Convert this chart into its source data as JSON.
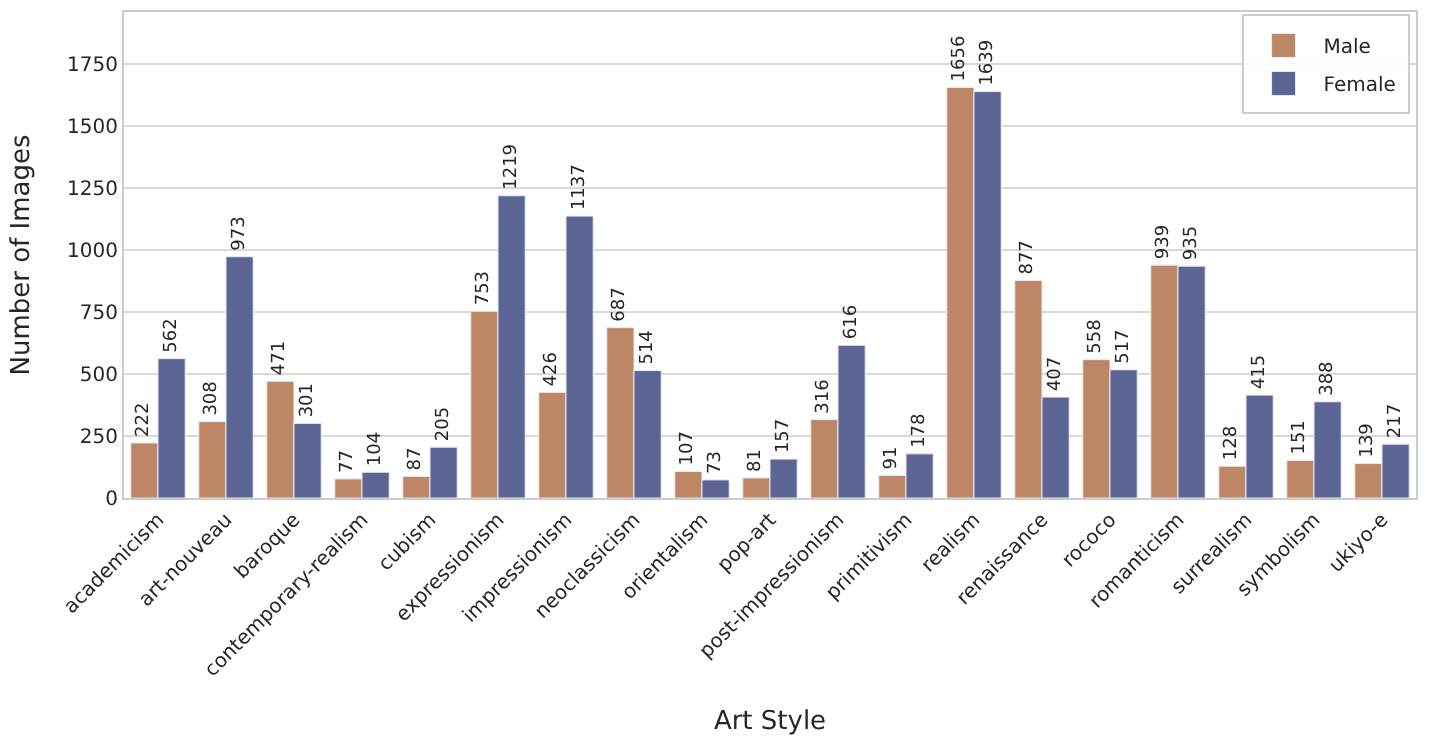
{
  "chart_data": {
    "type": "bar",
    "xlabel": "Art Style",
    "ylabel": "Number of Images",
    "categories": [
      "academicism",
      "art-nouveau",
      "baroque",
      "contemporary-realism",
      "cubism",
      "expressionism",
      "impressionism",
      "neoclassicism",
      "orientalism",
      "pop-art",
      "post-impressionism",
      "primitivism",
      "realism",
      "renaissance",
      "rococo",
      "romanticism",
      "surrealism",
      "symbolism",
      "ukiyo-e"
    ],
    "series": [
      {
        "name": "Male",
        "color": "#bd8766",
        "values": [
          222,
          308,
          471,
          77,
          87,
          753,
          426,
          687,
          107,
          81,
          316,
          91,
          1656,
          877,
          558,
          939,
          128,
          151,
          139
        ]
      },
      {
        "name": "Female",
        "color": "#5b6493",
        "values": [
          562,
          973,
          301,
          104,
          205,
          1219,
          1137,
          514,
          73,
          157,
          616,
          178,
          1639,
          407,
          517,
          935,
          415,
          388,
          217
        ]
      }
    ],
    "ylim": [
      0,
      1960
    ],
    "yticks": [
      0,
      250,
      500,
      750,
      1000,
      1250,
      1500,
      1750
    ],
    "grid": "y",
    "legend": "top right",
    "data_labels": true
  }
}
